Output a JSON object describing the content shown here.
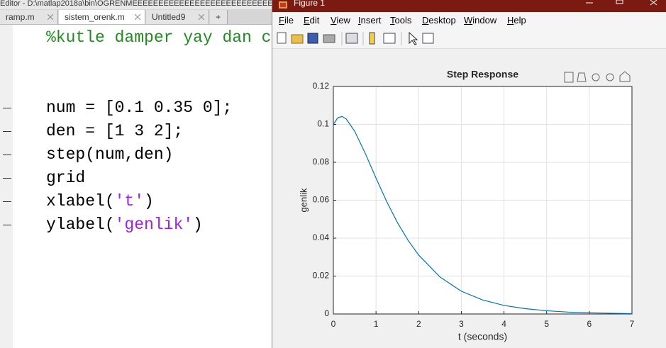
{
  "editor": {
    "title": "Editor - D:\\matlap2018a\\bin\\OGRENMEEEEEEEEEEEEEEEEEEEEEEEEEEEEEEEEEEE",
    "tabs": [
      "ramp.m",
      "sistem_orenk.m",
      "Untitled9",
      "+"
    ],
    "code_lines": [
      [
        "%kutle damper yay dan c"
      ],
      [],
      [],
      [
        "num = [0.1 0.35 0];"
      ],
      [
        "den = [1 3 2];"
      ],
      [
        "step(num,den)"
      ],
      [
        "grid"
      ],
      [
        "xlabel(",
        "'t'",
        ")"
      ],
      [
        "ylabel(",
        "'genlik'",
        ")"
      ]
    ]
  },
  "figure": {
    "window_title": "Figure 1",
    "menu": [
      "File",
      "Edit",
      "View",
      "Insert",
      "Tools",
      "Desktop",
      "Window",
      "Help"
    ]
  },
  "chart_data": {
    "type": "line",
    "title": "Step Response",
    "x_label": "t (seconds)",
    "y_label": "genlik",
    "x": [
      0,
      0.1,
      0.2,
      0.3,
      0.5,
      0.75,
      1,
      1.25,
      1.5,
      1.75,
      2,
      2.5,
      3,
      3.5,
      4,
      4.5,
      5,
      5.5,
      6,
      6.5,
      7
    ],
    "series": [
      {
        "name": "genlik",
        "color": "#0072bd",
        "values": [
          0.1,
          0.1034,
          0.1042,
          0.1029,
          0.0964,
          0.0846,
          0.0717,
          0.0593,
          0.0483,
          0.0389,
          0.0311,
          0.0195,
          0.012,
          0.0074,
          0.0045,
          0.0028,
          0.0017,
          0.001,
          0.0006,
          0.0004,
          0.0002
        ]
      }
    ],
    "xlim": [
      0,
      7
    ],
    "ylim": [
      0,
      0.12
    ],
    "xticks": [
      0,
      1,
      2,
      3,
      4,
      5,
      6,
      7
    ],
    "yticks": [
      0,
      0.02,
      0.04,
      0.06,
      0.08,
      0.1,
      0.12
    ],
    "grid": true
  }
}
